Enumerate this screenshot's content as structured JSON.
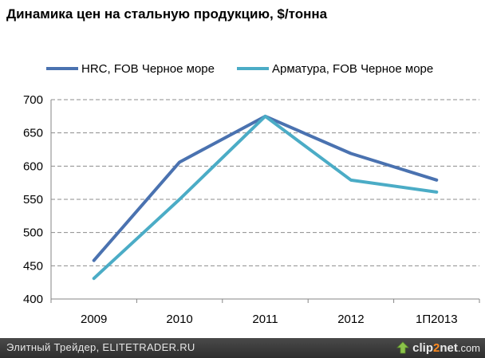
{
  "title": "Динамика цен на стальную продукцию, $/тонна",
  "footer": {
    "credit": "Элитный Трейдер, ELITETRADER.RU",
    "logo_part1": "clip",
    "logo_part2": "2",
    "logo_part3": "net",
    "logo_part4": ".com"
  },
  "colors": {
    "hrc": "#4a72b0",
    "rebar": "#4bacc6",
    "grid": "#8c8c8c",
    "axis": "#868686"
  },
  "chart_data": {
    "type": "line",
    "categories": [
      "2009",
      "2010",
      "2011",
      "2012",
      "1П2013"
    ],
    "series": [
      {
        "name": "HRC, FOB Черное море",
        "values": [
          458,
          606,
          675,
          619,
          579
        ]
      },
      {
        "name": "Арматура, FOB Черное море",
        "values": [
          431,
          550,
          675,
          579,
          561
        ]
      }
    ],
    "ylim": [
      400,
      700
    ],
    "yticks": [
      400,
      450,
      500,
      550,
      600,
      650,
      700
    ],
    "grid": true,
    "legend": "top"
  }
}
